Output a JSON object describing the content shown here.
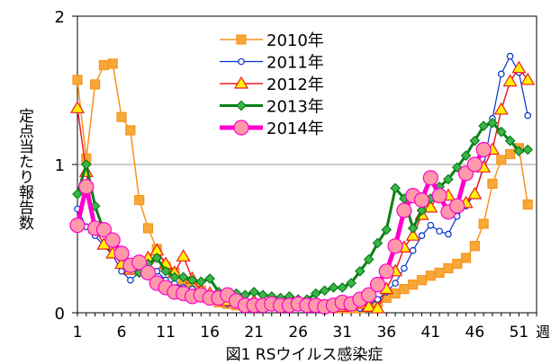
{
  "chart_data": {
    "type": "line",
    "caption": "図1 RSウイルス感染症",
    "ylabel": "定点当たり報告数",
    "x_unit_label": "週",
    "ylim": [
      0,
      2
    ],
    "xlim": [
      1,
      53
    ],
    "y_ticks": [
      0,
      1,
      2
    ],
    "x_ticks": [
      1,
      6,
      11,
      16,
      21,
      26,
      31,
      36,
      41,
      46,
      51
    ],
    "gridlines_y": [
      1
    ],
    "legend_position": "top-center",
    "series": [
      {
        "name": "2010年",
        "color": "#f7941d",
        "fill": "#f7a836",
        "marker": "square",
        "values": [
          1.57,
          1.04,
          1.54,
          1.67,
          1.68,
          1.32,
          1.23,
          0.76,
          0.57,
          0.43,
          0.31,
          0.27,
          0.21,
          0.17,
          0.15,
          0.1,
          0.07,
          0.06,
          0.05,
          0.05,
          0.06,
          0.05,
          0.05,
          0.06,
          0.05,
          0.05,
          0.05,
          0.04,
          0.04,
          0.03,
          0.03,
          0.03,
          0.03,
          0.05,
          0.07,
          0.1,
          0.13,
          0.16,
          0.19,
          0.22,
          0.25,
          0.27,
          0.3,
          0.33,
          0.37,
          0.45,
          0.6,
          0.87,
          1.03,
          1.07,
          1.11,
          0.73
        ]
      },
      {
        "name": "2011年",
        "color": "#0033cc",
        "fill": "#ffffff",
        "marker": "circle-small",
        "values": [
          0.7,
          0.58,
          0.52,
          0.45,
          0.39,
          0.28,
          0.22,
          0.27,
          0.33,
          0.28,
          0.22,
          0.2,
          0.17,
          0.16,
          0.14,
          0.12,
          0.09,
          0.06,
          0.06,
          0.07,
          0.07,
          0.06,
          0.06,
          0.07,
          0.06,
          0.05,
          0.04,
          0.04,
          0.03,
          0.04,
          0.05,
          0.04,
          0.03,
          0.05,
          0.09,
          0.14,
          0.2,
          0.3,
          0.42,
          0.52,
          0.59,
          0.55,
          0.53,
          0.65,
          0.72,
          0.8,
          0.99,
          1.31,
          1.61,
          1.73,
          1.62,
          1.33
        ]
      },
      {
        "name": "2012年",
        "color": "#ee1c24",
        "fill": "#fff200",
        "marker": "triangle",
        "values": [
          1.38,
          0.95,
          0.57,
          0.46,
          0.4,
          0.33,
          0.29,
          0.32,
          0.37,
          0.42,
          0.33,
          0.27,
          0.38,
          0.23,
          0.15,
          0.13,
          0.09,
          0.08,
          0.08,
          0.07,
          0.08,
          0.07,
          0.07,
          0.07,
          0.06,
          0.05,
          0.05,
          0.04,
          0.04,
          0.05,
          0.04,
          0.05,
          0.06,
          0.04,
          0.03,
          0.16,
          0.28,
          0.44,
          0.52,
          0.66,
          0.71,
          0.8,
          0.79,
          0.72,
          0.74,
          0.8,
          0.98,
          1.1,
          1.37,
          1.56,
          1.65,
          1.57
        ]
      },
      {
        "name": "2013年",
        "color": "#0a7f16",
        "fill": "#3cb54a",
        "marker": "diamond",
        "values": [
          0.8,
          1.0,
          0.72,
          0.55,
          0.48,
          0.38,
          0.3,
          0.27,
          0.33,
          0.37,
          0.28,
          0.24,
          0.24,
          0.22,
          0.21,
          0.23,
          0.14,
          0.12,
          0.13,
          0.12,
          0.14,
          0.12,
          0.11,
          0.1,
          0.11,
          0.09,
          0.09,
          0.13,
          0.15,
          0.17,
          0.17,
          0.2,
          0.28,
          0.36,
          0.47,
          0.56,
          0.84,
          0.77,
          0.57,
          0.69,
          0.77,
          0.85,
          0.9,
          0.98,
          1.06,
          1.16,
          1.26,
          1.28,
          1.22,
          1.16,
          1.09,
          1.1
        ]
      },
      {
        "name": "2014年",
        "color": "#ff00cc",
        "fill": "#ff99aa",
        "marker": "circle-large",
        "values": [
          0.59,
          0.85,
          0.57,
          0.56,
          0.49,
          0.4,
          0.32,
          0.34,
          0.27,
          0.2,
          0.17,
          0.14,
          0.13,
          0.11,
          0.12,
          0.1,
          0.1,
          0.12,
          0.08,
          0.05,
          0.05,
          0.05,
          0.06,
          0.05,
          0.05,
          0.06,
          0.05,
          0.05,
          0.04,
          0.05,
          0.07,
          0.06,
          0.09,
          0.12,
          0.19,
          0.28,
          0.45,
          0.69,
          0.79,
          0.76,
          0.91,
          0.79,
          0.68,
          0.72,
          0.94,
          1.0,
          1.1
        ]
      }
    ]
  }
}
